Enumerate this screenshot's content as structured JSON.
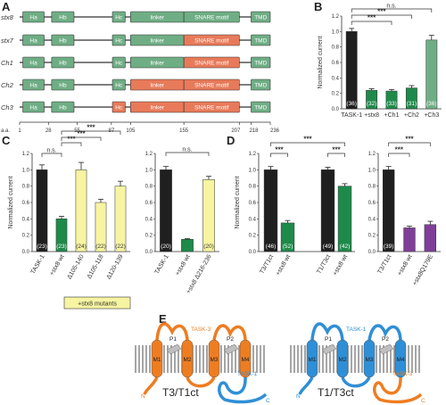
{
  "panels": {
    "A": "A",
    "B": "B",
    "C": "C",
    "D": "D",
    "E": "E"
  },
  "colors": {
    "green": "#6fae85",
    "green_dark": "#1e8a4a",
    "salmon": "#e87a5a",
    "black": "#1f1f1f",
    "yellow": "#f7f4a2",
    "purple": "#7f3f98",
    "orange": "#ee7d22",
    "blue": "#2f8fd6",
    "gray": "#8c8c8c"
  },
  "panel_a": {
    "rows": [
      {
        "label": "stx8",
        "variant": "all-green"
      },
      {
        "label": "stx7",
        "variant": "stx7"
      },
      {
        "label": "Ch1",
        "variant": "ch1"
      },
      {
        "label": "Ch2",
        "variant": "ch2"
      },
      {
        "label": "Ch3",
        "variant": "ch3"
      }
    ],
    "segments": {
      "ha": "Ha",
      "hb": "Hb",
      "hc": "Hc",
      "linker": "linker",
      "snare": "SNARE motif",
      "tmd": "TMD"
    },
    "axis_label": "a.a.",
    "ticks": [
      "1",
      "28",
      "55",
      "87",
      "105",
      "155",
      "207",
      "218",
      "236"
    ]
  },
  "chart_data": [
    {
      "panel": "B",
      "type": "bar",
      "ylabel": "Normalized current",
      "ylim": [
        0,
        1.2
      ],
      "yticks": [
        "0.0",
        "0.2",
        "0.4",
        "0.6",
        "0.8",
        "1.0",
        "1.2"
      ],
      "categories": [
        "TASK-1",
        "+stx8",
        "+Ch1",
        "+Ch2",
        "+Ch3"
      ],
      "values": [
        1.0,
        0.24,
        0.23,
        0.27,
        0.89
      ],
      "errors": [
        0.04,
        0.02,
        0.02,
        0.03,
        0.06
      ],
      "n": [
        "(36)",
        "(32)",
        "(33)",
        "(31)",
        "(36)"
      ],
      "significance": [
        "***",
        "***",
        "***",
        "n.s."
      ]
    },
    {
      "panel": "C",
      "type": "bar",
      "ylabel": "Normalized current",
      "ylim": [
        0,
        1.2
      ],
      "yticks": [
        "0.0",
        "0.2",
        "0.4",
        "0.6",
        "0.8",
        "1.0",
        "1.2"
      ],
      "categories": [
        "TASK-1",
        "+stx8 wt",
        "Δ105-140",
        "Δ105-118",
        "Δ120-139"
      ],
      "values": [
        1.0,
        0.4,
        1.0,
        0.6,
        0.8
      ],
      "errors": [
        0.06,
        0.03,
        0.09,
        0.04,
        0.06
      ],
      "n": [
        "(23)",
        "(23)",
        "(24)",
        "(22)",
        "(22)"
      ],
      "significance": [
        "n.s.",
        "***",
        "***"
      ]
    },
    {
      "panel": "C2",
      "type": "bar",
      "ylim": [
        0,
        1.2
      ],
      "yticks": [
        "0.0",
        "0.2",
        "0.4",
        "0.6",
        "0.8",
        "1.0",
        "1.2"
      ],
      "categories": [
        "TASK-1",
        "+stx8 wt",
        "+stx8 Δ216-236"
      ],
      "values": [
        1.0,
        0.15,
        0.88
      ],
      "errors": [
        0.04,
        0.01,
        0.04
      ],
      "n": [
        "(20)",
        "",
        "(20)"
      ],
      "significance": [
        "n.s."
      ],
      "legend_box": "+stx8 mutants"
    },
    {
      "panel": "D",
      "type": "bar",
      "ylabel": "Normalized current",
      "ylim": [
        0,
        1.2
      ],
      "yticks": [
        "0.0",
        "0.2",
        "0.4",
        "0.6",
        "0.8",
        "1.0",
        "1.2"
      ],
      "categories": [
        "T3/T1ct",
        "+stx8 wt",
        "T1/T3ct",
        "+stx8 wt"
      ],
      "values": [
        1.0,
        0.35,
        1.0,
        0.8
      ],
      "errors": [
        0.04,
        0.03,
        0.03,
        0.03
      ],
      "n": [
        "(46)",
        "(52)",
        "(49)",
        "(42)"
      ],
      "significance": [
        "***",
        "***",
        "***"
      ]
    },
    {
      "panel": "D2",
      "type": "bar",
      "ylim": [
        0,
        1.2
      ],
      "yticks": [
        "0.0",
        "0.2",
        "0.4",
        "0.6",
        "0.8",
        "1.0",
        "1.2"
      ],
      "categories": [
        "T3/T1ct",
        "+stx8 wt",
        "+stx8Q179E"
      ],
      "values": [
        1.0,
        0.29,
        0.33
      ],
      "errors": [
        0.04,
        0.02,
        0.04
      ],
      "n": [
        "(39)",
        "",
        ""
      ],
      "significance": [
        "***",
        "***"
      ]
    }
  ],
  "panel_e": {
    "left": {
      "label": "T3/T1ct",
      "n_label": "N",
      "c_label": "C",
      "p1": "P1",
      "p2": "P2",
      "task3": "TASK-3",
      "task1": "TASK-1",
      "m": [
        "M1",
        "M2",
        "M3",
        "M4"
      ]
    },
    "right": {
      "label": "T1/T3ct",
      "n_label": "N",
      "c_label": "C",
      "p1": "P1",
      "p2": "P2",
      "task1": "TASK-1",
      "task3": "TASK-3",
      "m": [
        "M1",
        "M2",
        "M3",
        "M4"
      ]
    }
  }
}
